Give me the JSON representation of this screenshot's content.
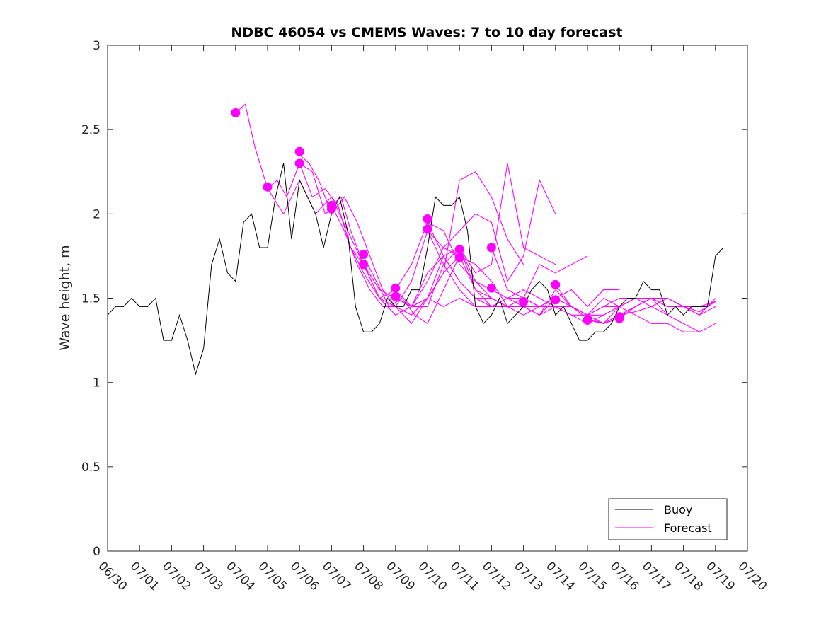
{
  "chart_data": {
    "type": "line",
    "title": "NDBC 46054 vs CMEMS Waves: 7 to 10 day forecast",
    "xlabel": "",
    "ylabel": "Wave height, m",
    "xlim": [
      "06/30",
      "07/20"
    ],
    "ylim": [
      0,
      3
    ],
    "x_ticks": [
      "06/30",
      "07/01",
      "07/02",
      "07/03",
      "07/04",
      "07/05",
      "07/06",
      "07/07",
      "07/08",
      "07/09",
      "07/10",
      "07/11",
      "07/12",
      "07/13",
      "07/14",
      "07/15",
      "07/16",
      "07/17",
      "07/18",
      "07/19",
      "07/20"
    ],
    "y_ticks": [
      "0",
      "0.5",
      "1",
      "1.5",
      "2",
      "2.5",
      "3"
    ],
    "x_unit": "days after 06/30 00:00",
    "grid": false,
    "legend": {
      "position": "bottom-right",
      "entries": [
        "Buoy",
        "Forecast"
      ]
    },
    "colors": {
      "buoy": "#000000",
      "forecast": "#ff00ff"
    },
    "buoy": {
      "name": "Buoy",
      "x": [
        0.0,
        0.25,
        0.5,
        0.75,
        1.0,
        1.25,
        1.5,
        1.75,
        2.0,
        2.25,
        2.5,
        2.75,
        3.0,
        3.25,
        3.5,
        3.75,
        4.0,
        4.25,
        4.5,
        4.75,
        5.0,
        5.25,
        5.5,
        5.75,
        6.0,
        6.25,
        6.5,
        6.75,
        7.0,
        7.25,
        7.5,
        7.75,
        8.0,
        8.25,
        8.5,
        8.75,
        9.0,
        9.25,
        9.5,
        9.75,
        10.0,
        10.25,
        10.5,
        10.75,
        11.0,
        11.25,
        11.5,
        11.75,
        12.0,
        12.25,
        12.5,
        12.75,
        13.0,
        13.25,
        13.5,
        13.75,
        14.0,
        14.25,
        14.5,
        14.75,
        15.0,
        15.25,
        15.5,
        15.75,
        16.0,
        16.25,
        16.5,
        16.75,
        17.0,
        17.25,
        17.5,
        17.75,
        18.0,
        18.25,
        18.5,
        18.75,
        19.0,
        19.25
      ],
      "y": [
        1.4,
        1.45,
        1.45,
        1.5,
        1.45,
        1.45,
        1.5,
        1.25,
        1.25,
        1.4,
        1.25,
        1.05,
        1.2,
        1.7,
        1.85,
        1.65,
        1.6,
        1.95,
        2.0,
        1.8,
        1.8,
        2.1,
        2.3,
        1.85,
        2.2,
        2.1,
        2.0,
        1.8,
        2.0,
        2.1,
        1.9,
        1.45,
        1.3,
        1.3,
        1.35,
        1.5,
        1.45,
        1.45,
        1.55,
        1.55,
        1.8,
        2.1,
        2.05,
        2.05,
        2.1,
        1.9,
        1.45,
        1.35,
        1.4,
        1.5,
        1.35,
        1.4,
        1.45,
        1.55,
        1.6,
        1.55,
        1.4,
        1.45,
        1.35,
        1.25,
        1.25,
        1.3,
        1.3,
        1.35,
        1.45,
        1.5,
        1.5,
        1.6,
        1.55,
        1.55,
        1.4,
        1.45,
        1.4,
        1.45,
        1.45,
        1.45,
        1.75,
        1.8
      ]
    },
    "forecast": {
      "name": "Forecast",
      "series": [
        {
          "x": [
            4.0,
            4.3,
            4.6,
            5.0,
            5.5,
            6.0,
            6.5,
            7.0,
            7.5,
            8.0,
            8.5,
            9.0,
            9.5,
            10.0,
            10.5,
            11.0
          ],
          "y": [
            2.6,
            2.65,
            2.4,
            2.15,
            2.0,
            2.2,
            2.0,
            2.1,
            1.9,
            1.7,
            1.5,
            1.45,
            1.6,
            1.9,
            1.8,
            1.75
          ]
        },
        {
          "x": [
            5.0,
            5.3,
            5.6,
            6.0,
            6.4,
            6.8,
            7.2,
            7.6,
            8.0,
            8.5,
            9.0,
            9.5,
            10.0,
            10.5,
            11.0,
            11.5,
            12.0
          ],
          "y": [
            2.15,
            2.2,
            2.1,
            2.3,
            2.1,
            2.15,
            2.05,
            1.8,
            1.65,
            1.5,
            1.55,
            1.7,
            1.95,
            1.9,
            1.7,
            1.6,
            1.55
          ]
        },
        {
          "x": [
            6.0,
            6.3,
            6.6,
            7.0,
            7.4,
            7.8,
            8.2,
            8.6,
            9.0,
            9.5,
            10.0,
            10.5,
            11.0,
            11.5,
            12.0,
            12.5,
            13.0
          ],
          "y": [
            2.35,
            2.3,
            2.2,
            2.0,
            2.1,
            1.95,
            1.75,
            1.55,
            1.45,
            1.4,
            1.5,
            1.65,
            2.2,
            2.25,
            2.1,
            1.85,
            1.7
          ]
        },
        {
          "x": [
            6.0,
            6.4,
            6.8,
            7.2,
            7.6,
            8.0,
            8.5,
            9.0,
            9.5,
            10.0,
            10.5,
            11.0,
            11.5,
            12.0,
            12.5,
            13.0,
            13.5,
            14.0
          ],
          "y": [
            2.3,
            2.25,
            2.0,
            2.05,
            1.8,
            1.7,
            1.55,
            1.5,
            1.45,
            1.6,
            1.8,
            1.9,
            2.0,
            1.95,
            1.6,
            1.75,
            2.2,
            2.0
          ]
        },
        {
          "x": [
            7.0,
            7.3,
            7.6,
            8.0,
            8.5,
            9.0,
            9.5,
            10.0,
            10.5,
            11.0,
            11.5,
            12.0,
            12.5,
            13.0,
            13.5,
            14.0
          ],
          "y": [
            2.05,
            2.1,
            1.9,
            1.7,
            1.55,
            1.5,
            1.45,
            1.45,
            1.7,
            1.8,
            1.65,
            1.7,
            2.3,
            1.8,
            1.75,
            1.7
          ]
        },
        {
          "x": [
            7.0,
            7.4,
            7.8,
            8.2,
            8.6,
            9.0,
            9.5,
            10.0,
            10.5,
            11.0,
            11.5,
            12.0,
            12.5,
            13.0,
            13.5,
            14.0,
            14.5,
            15.0
          ],
          "y": [
            2.05,
            1.9,
            1.7,
            1.55,
            1.45,
            1.45,
            1.35,
            1.5,
            1.75,
            1.8,
            1.55,
            1.45,
            1.5,
            1.5,
            1.7,
            1.65,
            1.7,
            1.75
          ]
        },
        {
          "x": [
            8.0,
            8.4,
            8.8,
            9.2,
            9.6,
            10.0,
            10.5,
            11.0,
            11.5,
            12.0,
            12.5,
            13.0,
            13.5,
            14.0,
            14.5,
            15.0,
            15.5,
            16.0
          ],
          "y": [
            1.75,
            1.6,
            1.45,
            1.5,
            1.4,
            1.35,
            1.55,
            1.75,
            1.7,
            1.6,
            1.45,
            1.45,
            1.4,
            1.5,
            1.55,
            1.45,
            1.55,
            1.55
          ]
        },
        {
          "x": [
            8.0,
            8.5,
            9.0,
            9.5,
            10.0,
            10.5,
            11.0,
            11.5,
            12.0,
            12.5,
            13.0,
            13.5,
            14.0,
            14.5,
            15.0,
            15.5,
            16.0
          ],
          "y": [
            1.7,
            1.5,
            1.4,
            1.45,
            1.5,
            1.45,
            1.5,
            1.45,
            1.45,
            1.5,
            1.55,
            1.5,
            1.45,
            1.45,
            1.4,
            1.5,
            1.45
          ]
        },
        {
          "x": [
            9.0,
            9.5,
            10.0,
            10.5,
            11.0,
            11.5,
            12.0,
            12.5,
            13.0,
            13.5,
            14.0,
            14.5,
            15.0,
            15.5,
            16.0,
            16.5,
            17.0
          ],
          "y": [
            1.55,
            1.45,
            1.5,
            1.65,
            1.75,
            1.55,
            1.5,
            1.45,
            1.45,
            1.4,
            1.55,
            1.45,
            1.4,
            1.35,
            1.4,
            1.45,
            1.5
          ]
        },
        {
          "x": [
            9.0,
            9.5,
            10.0,
            10.5,
            11.0,
            11.5,
            12.0,
            12.5,
            13.0,
            13.5,
            14.0,
            14.5,
            15.0,
            15.5,
            16.0,
            16.5,
            17.0,
            17.5,
            18.0
          ],
          "y": [
            1.5,
            1.45,
            1.65,
            1.75,
            1.6,
            1.5,
            1.45,
            1.45,
            1.5,
            1.45,
            1.45,
            1.4,
            1.35,
            1.4,
            1.45,
            1.5,
            1.5,
            1.4,
            1.35
          ]
        },
        {
          "x": [
            10.0,
            10.5,
            11.0,
            11.5,
            12.0,
            12.5,
            13.0,
            13.5,
            14.0,
            14.5,
            15.0,
            15.5,
            16.0,
            16.5,
            17.0,
            17.5,
            18.0,
            18.5
          ],
          "y": [
            1.95,
            1.75,
            1.6,
            1.5,
            1.5,
            1.45,
            1.45,
            1.45,
            1.5,
            1.45,
            1.4,
            1.45,
            1.5,
            1.5,
            1.45,
            1.4,
            1.35,
            1.3
          ]
        },
        {
          "x": [
            10.0,
            10.5,
            11.0,
            11.5,
            12.0,
            12.5,
            13.0,
            13.5,
            14.0,
            14.5,
            15.0,
            15.5,
            16.0,
            16.5,
            17.0,
            17.5,
            18.0,
            18.5,
            19.0
          ],
          "y": [
            1.9,
            1.7,
            1.55,
            1.45,
            1.45,
            1.45,
            1.4,
            1.45,
            1.45,
            1.4,
            1.4,
            1.45,
            1.45,
            1.4,
            1.35,
            1.35,
            1.3,
            1.3,
            1.35
          ]
        },
        {
          "x": [
            11.0,
            11.5,
            12.0,
            12.5,
            13.0,
            13.5,
            14.0,
            14.5,
            15.0,
            15.5,
            16.0,
            16.5,
            17.0,
            17.5,
            18.0,
            18.5,
            19.0
          ],
          "y": [
            1.8,
            1.6,
            1.5,
            1.45,
            1.45,
            1.4,
            1.45,
            1.45,
            1.4,
            1.35,
            1.45,
            1.5,
            1.5,
            1.45,
            1.45,
            1.4,
            1.45
          ]
        },
        {
          "x": [
            12.0,
            12.5,
            13.0,
            13.5,
            14.0,
            14.5,
            15.0,
            15.5,
            16.0,
            16.5,
            17.0,
            17.5,
            18.0,
            18.5,
            19.0
          ],
          "y": [
            1.8,
            1.55,
            1.5,
            1.45,
            1.5,
            1.45,
            1.4,
            1.4,
            1.45,
            1.5,
            1.5,
            1.45,
            1.45,
            1.4,
            1.5
          ]
        },
        {
          "x": [
            12.0,
            12.5,
            13.0,
            13.5,
            14.0,
            14.5,
            15.0,
            15.5,
            16.0,
            16.5,
            17.0,
            17.5,
            18.0,
            18.5,
            19.0
          ],
          "y": [
            1.55,
            1.5,
            1.45,
            1.45,
            1.45,
            1.45,
            1.4,
            1.35,
            1.4,
            1.45,
            1.5,
            1.5,
            1.45,
            1.45,
            1.48
          ]
        },
        {
          "x": [
            14.0,
            14.5,
            15.0,
            15.5,
            16.0,
            16.5,
            17.0,
            17.5,
            18.0,
            18.5,
            19.0
          ],
          "y": [
            1.58,
            1.45,
            1.38,
            1.35,
            1.4,
            1.42,
            1.45,
            1.5,
            1.45,
            1.42,
            1.48
          ]
        },
        {
          "x": [
            15.0,
            15.5,
            16.0,
            16.5,
            17.0,
            17.5,
            18.0,
            18.5,
            19.0
          ],
          "y": [
            1.37,
            1.35,
            1.38,
            1.45,
            1.5,
            1.5,
            1.45,
            1.42,
            1.48
          ]
        }
      ],
      "start_points": {
        "x": [
          4.0,
          5.0,
          6.0,
          6.0,
          7.0,
          7.0,
          8.0,
          8.0,
          9.0,
          9.0,
          10.0,
          10.0,
          11.0,
          11.0,
          12.0,
          12.0,
          13.0,
          14.0,
          14.0,
          15.0,
          16.0,
          16.0
        ],
        "y": [
          2.6,
          2.16,
          2.37,
          2.3,
          2.05,
          2.03,
          1.76,
          1.7,
          1.56,
          1.51,
          1.97,
          1.91,
          1.79,
          1.74,
          1.8,
          1.56,
          1.48,
          1.58,
          1.49,
          1.37,
          1.39,
          1.38
        ]
      }
    }
  }
}
